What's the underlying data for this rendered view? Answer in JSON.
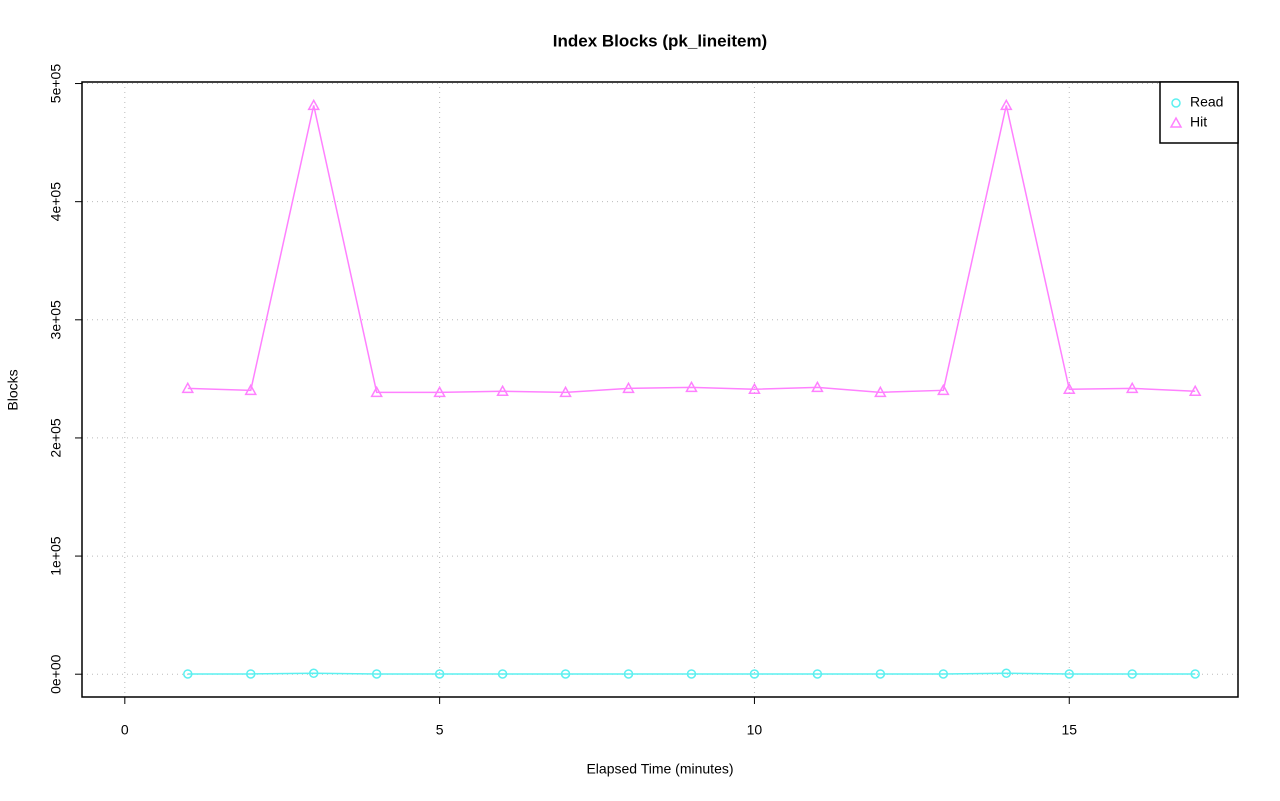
{
  "chart_data": {
    "type": "line",
    "title": "Index Blocks (pk_lineitem)",
    "x_label": "Elapsed Time (minutes)",
    "y_label": "Blocks",
    "x": [
      1,
      2,
      3,
      4,
      5,
      6,
      7,
      8,
      9,
      10,
      11,
      12,
      13,
      14,
      15,
      16,
      17
    ],
    "series": [
      {
        "name": "Read",
        "color": "#5cf0f0",
        "marker": "circle",
        "values": [
          200,
          200,
          800,
          200,
          200,
          200,
          200,
          200,
          200,
          200,
          200,
          200,
          200,
          800,
          200,
          200,
          200
        ]
      },
      {
        "name": "Hit",
        "color": "#ff80ff",
        "marker": "triangle",
        "values": [
          242000,
          240300,
          481500,
          238600,
          238600,
          239500,
          238600,
          242000,
          242800,
          241200,
          242800,
          238600,
          240300,
          481500,
          241200,
          242000,
          239500
        ]
      }
    ],
    "xlim": [
      -0.68,
      17.68
    ],
    "ylim": [
      -19300,
      501300
    ],
    "xticks": [
      0,
      5,
      10,
      15
    ],
    "yticks": [
      {
        "value": 0,
        "label": "0e+00"
      },
      {
        "value": 100000,
        "label": "1e+05"
      },
      {
        "value": 200000,
        "label": "2e+05"
      },
      {
        "value": 300000,
        "label": "3e+05"
      },
      {
        "value": 400000,
        "label": "4e+05"
      },
      {
        "value": 500000,
        "label": "5e+05"
      }
    ],
    "grid": true,
    "legend": "top-right"
  }
}
